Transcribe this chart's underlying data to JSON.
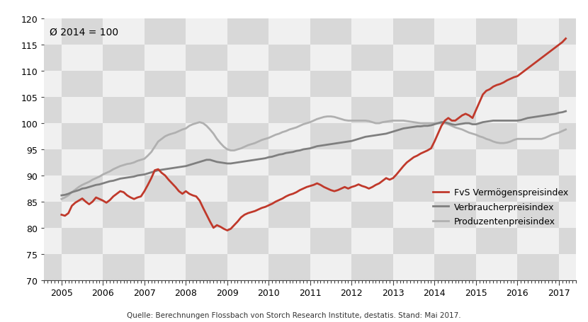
{
  "title_annotation": "Ø 2014 = 100",
  "source_text": "Quelle: Berechnungen Flossbach von Storch Research Institute, destatis. Stand: Mai 2017.",
  "ylim": [
    70,
    120
  ],
  "yticks": [
    70,
    75,
    80,
    85,
    90,
    95,
    100,
    105,
    110,
    115,
    120
  ],
  "xlim_start": 2004.58,
  "xlim_end": 2017.42,
  "xtick_labels": [
    "2005",
    "2006",
    "2007",
    "2008",
    "2009",
    "2010",
    "2011",
    "2012",
    "2013",
    "2014",
    "2015",
    "2016",
    "2017"
  ],
  "xtick_positions": [
    2005,
    2006,
    2007,
    2008,
    2009,
    2010,
    2011,
    2012,
    2013,
    2014,
    2015,
    2016,
    2017
  ],
  "legend_labels": [
    "FvS Vermögenspreisindex",
    "Verbraucherpreisindex",
    "Produzentenpreisindex"
  ],
  "fvs_color": "#c0392b",
  "verbraucher_color": "#7f7f7f",
  "produzenten_color": "#b0b0b0",
  "checker_dark": "#d8d8d8",
  "checker_light": "#f0f0f0",
  "fvs_linewidth": 2.0,
  "verbraucher_linewidth": 2.0,
  "produzenten_linewidth": 2.0,
  "fvs_data_x": [
    2005.0,
    2005.083,
    2005.167,
    2005.25,
    2005.333,
    2005.417,
    2005.5,
    2005.583,
    2005.667,
    2005.75,
    2005.833,
    2005.917,
    2006.0,
    2006.083,
    2006.167,
    2006.25,
    2006.333,
    2006.417,
    2006.5,
    2006.583,
    2006.667,
    2006.75,
    2006.833,
    2006.917,
    2007.0,
    2007.083,
    2007.167,
    2007.25,
    2007.333,
    2007.417,
    2007.5,
    2007.583,
    2007.667,
    2007.75,
    2007.833,
    2007.917,
    2008.0,
    2008.083,
    2008.167,
    2008.25,
    2008.333,
    2008.417,
    2008.5,
    2008.583,
    2008.667,
    2008.75,
    2008.833,
    2008.917,
    2009.0,
    2009.083,
    2009.167,
    2009.25,
    2009.333,
    2009.417,
    2009.5,
    2009.583,
    2009.667,
    2009.75,
    2009.833,
    2009.917,
    2010.0,
    2010.083,
    2010.167,
    2010.25,
    2010.333,
    2010.417,
    2010.5,
    2010.583,
    2010.667,
    2010.75,
    2010.833,
    2010.917,
    2011.0,
    2011.083,
    2011.167,
    2011.25,
    2011.333,
    2011.417,
    2011.5,
    2011.583,
    2011.667,
    2011.75,
    2011.833,
    2011.917,
    2012.0,
    2012.083,
    2012.167,
    2012.25,
    2012.333,
    2012.417,
    2012.5,
    2012.583,
    2012.667,
    2012.75,
    2012.833,
    2012.917,
    2013.0,
    2013.083,
    2013.167,
    2013.25,
    2013.333,
    2013.417,
    2013.5,
    2013.583,
    2013.667,
    2013.75,
    2013.833,
    2013.917,
    2014.0,
    2014.083,
    2014.167,
    2014.25,
    2014.333,
    2014.417,
    2014.5,
    2014.583,
    2014.667,
    2014.75,
    2014.833,
    2014.917,
    2015.0,
    2015.083,
    2015.167,
    2015.25,
    2015.333,
    2015.417,
    2015.5,
    2015.583,
    2015.667,
    2015.75,
    2015.833,
    2015.917,
    2016.0,
    2016.083,
    2016.167,
    2016.25,
    2016.333,
    2016.417,
    2016.5,
    2016.583,
    2016.667,
    2016.75,
    2016.833,
    2016.917,
    2017.0,
    2017.083,
    2017.167
  ],
  "fvs_data_y": [
    82.5,
    82.3,
    82.8,
    84.2,
    84.8,
    85.2,
    85.6,
    85.0,
    84.5,
    85.0,
    85.8,
    85.5,
    85.2,
    84.8,
    85.3,
    86.0,
    86.5,
    87.0,
    86.8,
    86.2,
    85.8,
    85.5,
    85.8,
    86.0,
    87.0,
    88.2,
    89.5,
    91.0,
    91.2,
    90.5,
    90.0,
    89.2,
    88.5,
    87.8,
    87.0,
    86.5,
    87.0,
    86.5,
    86.2,
    86.0,
    85.2,
    83.8,
    82.5,
    81.2,
    80.0,
    80.5,
    80.2,
    79.8,
    79.5,
    79.8,
    80.5,
    81.2,
    82.0,
    82.5,
    82.8,
    83.0,
    83.2,
    83.5,
    83.8,
    84.0,
    84.3,
    84.6,
    85.0,
    85.3,
    85.6,
    86.0,
    86.3,
    86.5,
    86.8,
    87.2,
    87.5,
    87.8,
    88.0,
    88.2,
    88.5,
    88.2,
    87.8,
    87.5,
    87.2,
    87.0,
    87.2,
    87.5,
    87.8,
    87.5,
    87.8,
    88.0,
    88.3,
    88.0,
    87.8,
    87.5,
    87.8,
    88.2,
    88.5,
    89.0,
    89.5,
    89.2,
    89.5,
    90.2,
    91.0,
    91.8,
    92.5,
    93.0,
    93.5,
    93.8,
    94.2,
    94.5,
    94.8,
    95.2,
    96.5,
    98.0,
    99.5,
    100.5,
    101.0,
    100.5,
    100.5,
    101.0,
    101.5,
    101.8,
    101.5,
    101.0,
    102.5,
    104.0,
    105.5,
    106.2,
    106.5,
    107.0,
    107.3,
    107.5,
    107.8,
    108.2,
    108.5,
    108.8,
    109.0,
    109.5,
    110.0,
    110.5,
    111.0,
    111.5,
    112.0,
    112.5,
    113.0,
    113.5,
    114.0,
    114.5,
    115.0,
    115.5,
    116.2
  ],
  "verbraucher_data_x": [
    2005.0,
    2005.083,
    2005.167,
    2005.25,
    2005.333,
    2005.417,
    2005.5,
    2005.583,
    2005.667,
    2005.75,
    2005.833,
    2005.917,
    2006.0,
    2006.083,
    2006.167,
    2006.25,
    2006.333,
    2006.417,
    2006.5,
    2006.583,
    2006.667,
    2006.75,
    2006.833,
    2006.917,
    2007.0,
    2007.083,
    2007.167,
    2007.25,
    2007.333,
    2007.417,
    2007.5,
    2007.583,
    2007.667,
    2007.75,
    2007.833,
    2007.917,
    2008.0,
    2008.083,
    2008.167,
    2008.25,
    2008.333,
    2008.417,
    2008.5,
    2008.583,
    2008.667,
    2008.75,
    2008.833,
    2008.917,
    2009.0,
    2009.083,
    2009.167,
    2009.25,
    2009.333,
    2009.417,
    2009.5,
    2009.583,
    2009.667,
    2009.75,
    2009.833,
    2009.917,
    2010.0,
    2010.083,
    2010.167,
    2010.25,
    2010.333,
    2010.417,
    2010.5,
    2010.583,
    2010.667,
    2010.75,
    2010.833,
    2010.917,
    2011.0,
    2011.083,
    2011.167,
    2011.25,
    2011.333,
    2011.417,
    2011.5,
    2011.583,
    2011.667,
    2011.75,
    2011.833,
    2011.917,
    2012.0,
    2012.083,
    2012.167,
    2012.25,
    2012.333,
    2012.417,
    2012.5,
    2012.583,
    2012.667,
    2012.75,
    2012.833,
    2012.917,
    2013.0,
    2013.083,
    2013.167,
    2013.25,
    2013.333,
    2013.417,
    2013.5,
    2013.583,
    2013.667,
    2013.75,
    2013.833,
    2013.917,
    2014.0,
    2014.083,
    2014.167,
    2014.25,
    2014.333,
    2014.417,
    2014.5,
    2014.583,
    2014.667,
    2014.75,
    2014.833,
    2014.917,
    2015.0,
    2015.083,
    2015.167,
    2015.25,
    2015.333,
    2015.417,
    2015.5,
    2015.583,
    2015.667,
    2015.75,
    2015.833,
    2015.917,
    2016.0,
    2016.083,
    2016.167,
    2016.25,
    2016.333,
    2016.417,
    2016.5,
    2016.583,
    2016.667,
    2016.75,
    2016.833,
    2016.917,
    2017.0,
    2017.083,
    2017.167
  ],
  "verbraucher_data_y": [
    86.2,
    86.3,
    86.5,
    86.8,
    87.0,
    87.2,
    87.5,
    87.6,
    87.8,
    88.0,
    88.2,
    88.3,
    88.5,
    88.7,
    88.9,
    89.0,
    89.2,
    89.4,
    89.5,
    89.6,
    89.7,
    89.8,
    90.0,
    90.1,
    90.2,
    90.4,
    90.6,
    90.8,
    91.0,
    91.1,
    91.2,
    91.3,
    91.4,
    91.5,
    91.6,
    91.7,
    91.8,
    92.0,
    92.2,
    92.4,
    92.6,
    92.8,
    93.0,
    93.0,
    92.8,
    92.6,
    92.5,
    92.4,
    92.3,
    92.3,
    92.4,
    92.5,
    92.6,
    92.7,
    92.8,
    92.9,
    93.0,
    93.1,
    93.2,
    93.3,
    93.5,
    93.6,
    93.8,
    94.0,
    94.1,
    94.3,
    94.4,
    94.5,
    94.7,
    94.8,
    95.0,
    95.1,
    95.2,
    95.4,
    95.6,
    95.7,
    95.8,
    95.9,
    96.0,
    96.1,
    96.2,
    96.3,
    96.4,
    96.5,
    96.6,
    96.8,
    97.0,
    97.2,
    97.4,
    97.5,
    97.6,
    97.7,
    97.8,
    97.9,
    98.0,
    98.2,
    98.4,
    98.6,
    98.8,
    99.0,
    99.1,
    99.2,
    99.3,
    99.4,
    99.4,
    99.5,
    99.5,
    99.6,
    99.8,
    100.0,
    100.2,
    100.2,
    100.0,
    99.8,
    99.7,
    99.8,
    99.9,
    100.0,
    100.0,
    99.8,
    99.8,
    100.0,
    100.2,
    100.3,
    100.4,
    100.5,
    100.5,
    100.5,
    100.5,
    100.5,
    100.5,
    100.5,
    100.5,
    100.6,
    100.8,
    101.0,
    101.1,
    101.2,
    101.3,
    101.4,
    101.5,
    101.6,
    101.7,
    101.8,
    102.0,
    102.1,
    102.3
  ],
  "produzenten_data_x": [
    2005.0,
    2005.083,
    2005.167,
    2005.25,
    2005.333,
    2005.417,
    2005.5,
    2005.583,
    2005.667,
    2005.75,
    2005.833,
    2005.917,
    2006.0,
    2006.083,
    2006.167,
    2006.25,
    2006.333,
    2006.417,
    2006.5,
    2006.583,
    2006.667,
    2006.75,
    2006.833,
    2006.917,
    2007.0,
    2007.083,
    2007.167,
    2007.25,
    2007.333,
    2007.417,
    2007.5,
    2007.583,
    2007.667,
    2007.75,
    2007.833,
    2007.917,
    2008.0,
    2008.083,
    2008.167,
    2008.25,
    2008.333,
    2008.417,
    2008.5,
    2008.583,
    2008.667,
    2008.75,
    2008.833,
    2008.917,
    2009.0,
    2009.083,
    2009.167,
    2009.25,
    2009.333,
    2009.417,
    2009.5,
    2009.583,
    2009.667,
    2009.75,
    2009.833,
    2009.917,
    2010.0,
    2010.083,
    2010.167,
    2010.25,
    2010.333,
    2010.417,
    2010.5,
    2010.583,
    2010.667,
    2010.75,
    2010.833,
    2010.917,
    2011.0,
    2011.083,
    2011.167,
    2011.25,
    2011.333,
    2011.417,
    2011.5,
    2011.583,
    2011.667,
    2011.75,
    2011.833,
    2011.917,
    2012.0,
    2012.083,
    2012.167,
    2012.25,
    2012.333,
    2012.417,
    2012.5,
    2012.583,
    2012.667,
    2012.75,
    2012.833,
    2012.917,
    2013.0,
    2013.083,
    2013.167,
    2013.25,
    2013.333,
    2013.417,
    2013.5,
    2013.583,
    2013.667,
    2013.75,
    2013.833,
    2013.917,
    2014.0,
    2014.083,
    2014.167,
    2014.25,
    2014.333,
    2014.417,
    2014.5,
    2014.583,
    2014.667,
    2014.75,
    2014.833,
    2014.917,
    2015.0,
    2015.083,
    2015.167,
    2015.25,
    2015.333,
    2015.417,
    2015.5,
    2015.583,
    2015.667,
    2015.75,
    2015.833,
    2015.917,
    2016.0,
    2016.083,
    2016.167,
    2016.25,
    2016.333,
    2016.417,
    2016.5,
    2016.583,
    2016.667,
    2016.75,
    2016.833,
    2016.917,
    2017.0,
    2017.083,
    2017.167
  ],
  "produzenten_data_y": [
    85.5,
    85.8,
    86.2,
    86.8,
    87.3,
    87.8,
    88.2,
    88.5,
    88.8,
    89.2,
    89.5,
    89.8,
    90.2,
    90.5,
    90.8,
    91.2,
    91.5,
    91.8,
    92.0,
    92.2,
    92.3,
    92.5,
    92.8,
    93.0,
    93.2,
    93.8,
    94.5,
    95.5,
    96.5,
    97.0,
    97.5,
    97.8,
    98.0,
    98.2,
    98.5,
    98.8,
    99.0,
    99.5,
    99.8,
    100.0,
    100.2,
    100.0,
    99.5,
    98.8,
    98.0,
    97.0,
    96.2,
    95.5,
    95.0,
    94.8,
    94.8,
    95.0,
    95.2,
    95.5,
    95.8,
    96.0,
    96.2,
    96.5,
    96.8,
    97.0,
    97.2,
    97.5,
    97.8,
    98.0,
    98.3,
    98.5,
    98.8,
    99.0,
    99.2,
    99.5,
    99.8,
    100.0,
    100.2,
    100.5,
    100.8,
    101.0,
    101.2,
    101.3,
    101.3,
    101.2,
    101.0,
    100.8,
    100.6,
    100.5,
    100.5,
    100.5,
    100.5,
    100.5,
    100.5,
    100.4,
    100.2,
    100.0,
    100.0,
    100.2,
    100.3,
    100.4,
    100.5,
    100.5,
    100.5,
    100.5,
    100.4,
    100.3,
    100.2,
    100.1,
    100.0,
    100.0,
    100.0,
    100.0,
    100.0,
    100.0,
    100.0,
    100.0,
    99.8,
    99.5,
    99.2,
    99.0,
    98.8,
    98.5,
    98.2,
    98.0,
    97.8,
    97.5,
    97.3,
    97.0,
    96.8,
    96.5,
    96.3,
    96.2,
    96.2,
    96.3,
    96.5,
    96.8,
    97.0,
    97.0,
    97.0,
    97.0,
    97.0,
    97.0,
    97.0,
    97.0,
    97.2,
    97.5,
    97.8,
    98.0,
    98.2,
    98.5,
    98.8
  ]
}
